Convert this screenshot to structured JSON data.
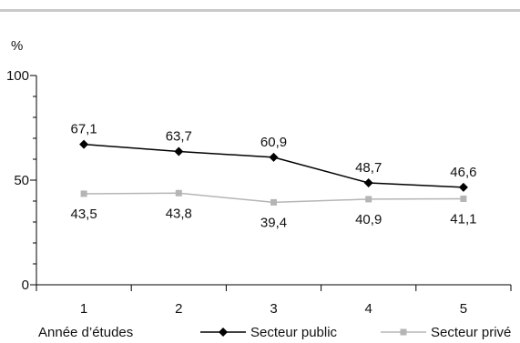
{
  "chart_data": {
    "type": "line",
    "ylabel": "%",
    "xlabel": "Année d’études",
    "categories": [
      "1",
      "2",
      "3",
      "4",
      "5"
    ],
    "yticks": [
      "0",
      "50",
      "100"
    ],
    "ylim": [
      0,
      100
    ],
    "grid": false,
    "legend_position": "bottom",
    "series": [
      {
        "name": "Secteur public",
        "values": [
          67.1,
          63.7,
          60.9,
          48.7,
          46.6
        ],
        "labels": [
          "67,1",
          "63,7",
          "60,9",
          "48,7",
          "46,6"
        ],
        "color": "#000000",
        "marker": "diamond",
        "label_position": "above"
      },
      {
        "name": "Secteur privé",
        "values": [
          43.5,
          43.8,
          39.4,
          40.9,
          41.1
        ],
        "labels": [
          "43,5",
          "43,8",
          "39,4",
          "40,9",
          "41,1"
        ],
        "color": "#b5b5b5",
        "marker": "square",
        "label_position": "below"
      }
    ]
  }
}
